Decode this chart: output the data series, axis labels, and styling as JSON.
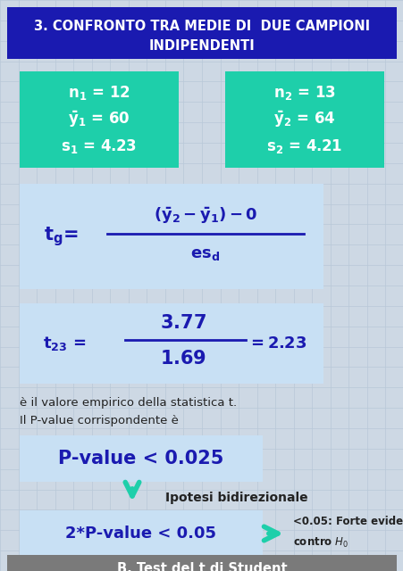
{
  "title_line1": "3. CONFRONTO TRA MEDIE DI  DUE CAMPIONI",
  "title_line2": "INDIPENDENTI",
  "title_bg": "#1a1ab0",
  "title_fg": "#ffffff",
  "bg_color": "#cdd8e4",
  "grid_color": "#b8c8d8",
  "teal_color": "#1ecfaa",
  "lightblue_color": "#c8e0f4",
  "footer_text": "B. Test del t di Student",
  "footer_bg": "#7a7a7a",
  "footer_fg": "#ffffff",
  "dark_blue": "#1a1ab0",
  "text_color": "#222222"
}
